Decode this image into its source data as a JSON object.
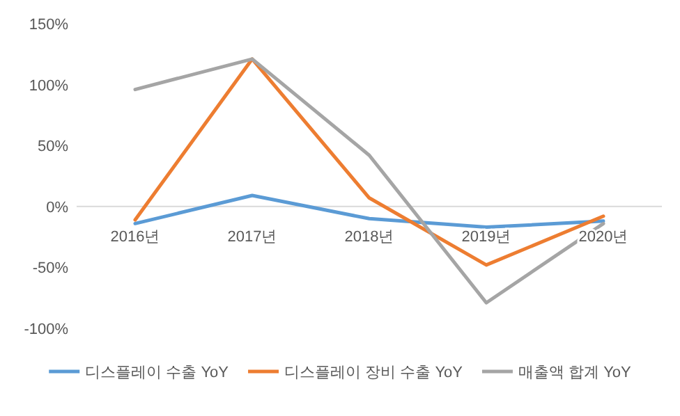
{
  "chart_data": {
    "type": "line",
    "categories": [
      "2016년",
      "2017년",
      "2018년",
      "2019년",
      "2020년"
    ],
    "series": [
      {
        "name": "디스플레이 수출 YoY",
        "color": "#5b9bd5",
        "values": [
          -14,
          9,
          -10,
          -17,
          -12
        ]
      },
      {
        "name": "디스플레이 장비 수출 YoY",
        "color": "#ed7d31",
        "values": [
          -11,
          121,
          7,
          -48,
          -8
        ]
      },
      {
        "name": "매출액 합계 YoY",
        "color": "#a5a5a5",
        "values": [
          96,
          121,
          42,
          -79,
          -14
        ]
      }
    ],
    "ylim": [
      -100,
      150
    ],
    "yticks": [
      {
        "value": -100,
        "label": "-100%"
      },
      {
        "value": -50,
        "label": "-50%"
      },
      {
        "value": 0,
        "label": "0%"
      },
      {
        "value": 50,
        "label": "50%"
      },
      {
        "value": 100,
        "label": "100%"
      },
      {
        "value": 150,
        "label": "150%"
      }
    ],
    "legend": "bottom",
    "marker": "none",
    "line_style": "solid"
  }
}
